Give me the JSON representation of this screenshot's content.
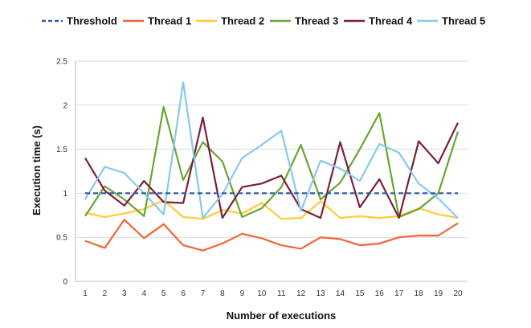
{
  "chart_data": {
    "type": "line",
    "title": "",
    "xlabel": "Number of executions",
    "ylabel": "Execution time (s)",
    "x": [
      1,
      2,
      3,
      4,
      5,
      6,
      7,
      8,
      9,
      10,
      11,
      12,
      13,
      14,
      15,
      16,
      17,
      18,
      19,
      20
    ],
    "x_tick_labels": [
      "1",
      "2",
      "3",
      "4",
      "5",
      "6",
      "7",
      "8",
      "9",
      "10",
      "11",
      "12",
      "13",
      "14",
      "15",
      "16",
      "17",
      "18",
      "19",
      "20"
    ],
    "ylim": [
      0,
      2.5
    ],
    "y_ticks": [
      0,
      0.5,
      1,
      1.5,
      2,
      2.5
    ],
    "y_tick_labels": [
      "0",
      "0.5",
      "1",
      "1.5",
      "2",
      "2.5"
    ],
    "grid": "horizontal",
    "legend_position": "top",
    "series": [
      {
        "name": "Threshold",
        "color": "#2e5fa3",
        "dashed": true,
        "values": [
          1,
          1,
          1,
          1,
          1,
          1,
          1,
          1,
          1,
          1,
          1,
          1,
          1,
          1,
          1,
          1,
          1,
          1,
          1,
          1
        ]
      },
      {
        "name": "Thread 1",
        "color": "#f0653a",
        "dashed": false,
        "values": [
          0.46,
          0.38,
          0.7,
          0.49,
          0.65,
          0.41,
          0.35,
          0.43,
          0.54,
          0.49,
          0.41,
          0.37,
          0.5,
          0.48,
          0.41,
          0.43,
          0.5,
          0.52,
          0.52,
          0.66
        ]
      },
      {
        "name": "Thread 2",
        "color": "#ffcc33",
        "dashed": false,
        "values": [
          0.78,
          0.73,
          0.77,
          0.82,
          0.92,
          0.73,
          0.71,
          0.81,
          0.77,
          0.89,
          0.71,
          0.72,
          0.91,
          0.72,
          0.74,
          0.72,
          0.74,
          0.83,
          0.76,
          0.72
        ]
      },
      {
        "name": "Thread 3",
        "color": "#6aa531",
        "dashed": false,
        "values": [
          0.74,
          1.08,
          0.93,
          0.74,
          1.98,
          1.15,
          1.58,
          1.36,
          0.73,
          0.83,
          1.07,
          1.55,
          0.93,
          1.12,
          1.5,
          1.91,
          0.73,
          0.82,
          1.0,
          1.7
        ]
      },
      {
        "name": "Thread 4",
        "color": "#7b1f3a",
        "dashed": false,
        "values": [
          1.4,
          1.03,
          0.86,
          1.14,
          0.9,
          0.89,
          1.86,
          0.72,
          1.07,
          1.11,
          1.2,
          0.82,
          0.72,
          1.58,
          0.84,
          1.16,
          0.72,
          1.59,
          1.34,
          1.8
        ]
      },
      {
        "name": "Thread 5",
        "color": "#87c8ee",
        "dashed": false,
        "values": [
          0.93,
          1.3,
          1.23,
          1.0,
          0.76,
          2.26,
          0.72,
          0.99,
          1.4,
          1.55,
          1.71,
          0.8,
          1.37,
          1.28,
          1.14,
          1.56,
          1.46,
          1.11,
          0.94,
          0.72
        ]
      }
    ]
  }
}
